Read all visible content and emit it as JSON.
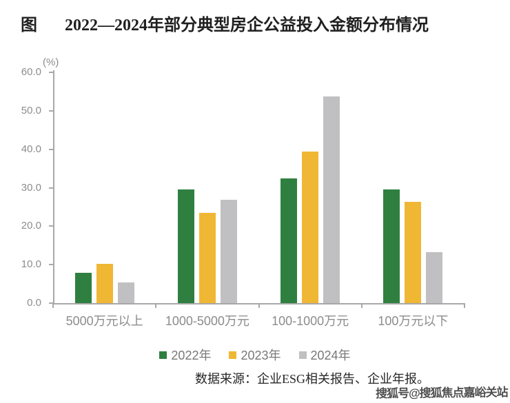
{
  "title": {
    "prefix": "图",
    "text": "2022—2024年部分典型房企公益投入金额分布情况"
  },
  "chart_data": {
    "type": "bar",
    "title": "2022—2024年部分典型房企公益投入金额分布情况",
    "unit_label": "(%)",
    "categories": [
      "5000万元以上",
      "1000-5000万元",
      "100-1000万元",
      "100万元以下"
    ],
    "series": [
      {
        "name": "2022年",
        "color": "#2f8040",
        "values": [
          7.9,
          29.5,
          32.4,
          29.5
        ]
      },
      {
        "name": "2023年",
        "color": "#f0b735",
        "values": [
          10.3,
          23.5,
          39.4,
          26.3
        ]
      },
      {
        "name": "2024年",
        "color": "#c0c0c2",
        "values": [
          5.3,
          26.9,
          53.8,
          13.3
        ]
      }
    ],
    "ylim": [
      0,
      60
    ],
    "ytick_step": 10,
    "ytick_decimals": 1,
    "grid": false,
    "legend_position": "bottom"
  },
  "source_note": "数据来源：企业ESG相关报告、企业年报。",
  "watermark": "搜狐号@搜狐焦点嘉峪关站",
  "colors": {
    "axis": "#a8a8a8",
    "tick_label": "#8c8c8c",
    "category_label": "#8c8c8c",
    "legend_label": "#787878",
    "title": "#1f1f1f",
    "watermark": "#3d3d3d",
    "background": "#ffffff"
  }
}
